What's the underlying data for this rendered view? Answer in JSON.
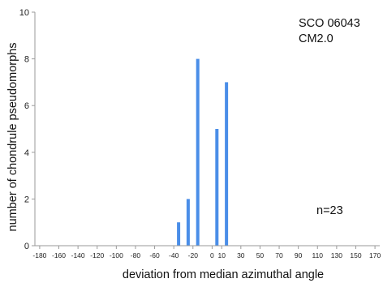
{
  "chart_data": {
    "type": "bar",
    "title": "",
    "xlabel": "deviation from median azimuthal angle",
    "ylabel": "number of chondrule pseudomorphs",
    "ylim": [
      0,
      10
    ],
    "yticks": [
      0,
      2,
      4,
      6,
      8,
      10
    ],
    "xlim": [
      -185,
      175
    ],
    "xticks": [
      -180,
      -160,
      -140,
      -120,
      -100,
      -80,
      -60,
      -40,
      -20,
      0,
      10,
      30,
      50,
      70,
      90,
      110,
      130,
      150,
      170
    ],
    "xtick_labels": [
      "-180",
      "-160",
      "-140",
      "-120",
      "-100",
      "-80",
      "-60",
      "-40",
      "-20",
      "0",
      "10",
      "30",
      "50",
      "70",
      "90",
      "110",
      "130",
      "150",
      "170"
    ],
    "bar_color": "#4a8ee8",
    "grid": false,
    "points": [
      {
        "x": -35,
        "y": 1
      },
      {
        "x": -25,
        "y": 2
      },
      {
        "x": -15,
        "y": 8
      },
      {
        "x": -5,
        "y": 0
      },
      {
        "x": 5,
        "y": 5
      },
      {
        "x": 15,
        "y": 7
      }
    ],
    "annotations": [
      "SCO 06043",
      "CM2.0",
      "n=23"
    ]
  }
}
